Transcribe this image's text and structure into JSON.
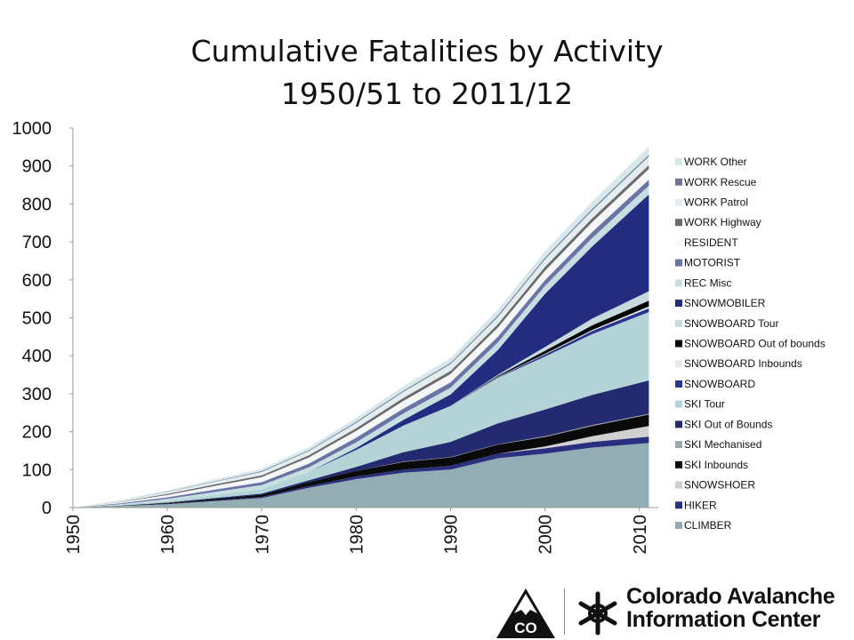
{
  "title": {
    "line1": "Cumulative Fatalities by Activity",
    "line2": "1950/51 to 2011/12"
  },
  "logo": {
    "name_line1": "Colorado Avalanche",
    "name_line2": "Information Center",
    "mark_text": "CO"
  },
  "chart_data": {
    "type": "area",
    "stacked": true,
    "title": "Cumulative Fatalities by Activity 1950/51 to 2011/12",
    "xlabel": "",
    "ylabel": "",
    "ylim": [
      0,
      1000
    ],
    "yticks": [
      0,
      100,
      200,
      300,
      400,
      500,
      600,
      700,
      800,
      900,
      1000
    ],
    "xlim": [
      1950,
      2012
    ],
    "xticks": [
      1950,
      1960,
      1970,
      1980,
      1990,
      2000,
      2010
    ],
    "grid": false,
    "legend_position": "right",
    "x": [
      1950,
      1955,
      1960,
      1965,
      1970,
      1975,
      1980,
      1985,
      1990,
      1995,
      2000,
      2005,
      2011
    ],
    "series": [
      {
        "name": "CLIMBER",
        "color": "#93adb5",
        "values": [
          0,
          4,
          9,
          17,
          25,
          52,
          75,
          92,
          100,
          130,
          142,
          158,
          170
        ]
      },
      {
        "name": "HIKER",
        "color": "#2a2f7f",
        "values": [
          0,
          0,
          1,
          2,
          3,
          5,
          7,
          8,
          10,
          12,
          14,
          15,
          17
        ]
      },
      {
        "name": "SNOWSHOER",
        "color": "#d0d0d0",
        "values": [
          0,
          0,
          0,
          0,
          0,
          0,
          0,
          0,
          0,
          0,
          5,
          15,
          28
        ]
      },
      {
        "name": "SKI Inbounds",
        "color": "#0a0a0a",
        "values": [
          0,
          1,
          2,
          4,
          6,
          10,
          15,
          20,
          22,
          24,
          25,
          27,
          30
        ]
      },
      {
        "name": "SKI Mechanised",
        "color": "#a0a6a8",
        "values": [
          0,
          0,
          0,
          0,
          0,
          0,
          0,
          1,
          1,
          1,
          2,
          2,
          2
        ]
      },
      {
        "name": "SKI Out of Bounds",
        "color": "#232a70",
        "values": [
          0,
          0,
          1,
          2,
          3,
          5,
          10,
          25,
          40,
          55,
          70,
          80,
          88
        ]
      },
      {
        "name": "SKI Tour",
        "color": "#b3d3d7",
        "values": [
          0,
          2,
          5,
          8,
          12,
          22,
          45,
          70,
          95,
          120,
          140,
          160,
          180
        ]
      },
      {
        "name": "SNOWBOARD",
        "color": "#2a3490",
        "values": [
          0,
          0,
          0,
          0,
          0,
          0,
          0,
          0,
          0,
          2,
          5,
          8,
          10
        ]
      },
      {
        "name": "SNOWBOARD Inbounds",
        "color": "#e7eaeb",
        "values": [
          0,
          0,
          0,
          0,
          0,
          0,
          0,
          0,
          0,
          1,
          2,
          3,
          5
        ]
      },
      {
        "name": "SNOWBOARD Out of bounds",
        "color": "#050505",
        "values": [
          0,
          0,
          0,
          0,
          0,
          0,
          0,
          0,
          0,
          2,
          8,
          12,
          15
        ]
      },
      {
        "name": "SNOWBOARD Tour",
        "color": "#c6d9dc",
        "values": [
          0,
          0,
          0,
          0,
          0,
          0,
          0,
          0,
          0,
          3,
          10,
          18,
          25
        ]
      },
      {
        "name": "SNOWMOBILER",
        "color": "#222c80",
        "values": [
          0,
          0,
          0,
          0,
          0,
          0,
          5,
          15,
          30,
          65,
          140,
          190,
          255
        ]
      },
      {
        "name": "REC Misc",
        "color": "#c8dfe2",
        "values": [
          0,
          2,
          5,
          8,
          10,
          12,
          15,
          17,
          18,
          20,
          21,
          22,
          23
        ]
      },
      {
        "name": "MOTORIST",
        "color": "#6a75a6",
        "values": [
          0,
          2,
          4,
          6,
          8,
          10,
          12,
          13,
          14,
          15,
          15,
          16,
          16
        ]
      },
      {
        "name": "RESIDENT",
        "color": "#f4f6f7",
        "values": [
          0,
          3,
          6,
          10,
          13,
          16,
          18,
          20,
          22,
          24,
          25,
          26,
          28
        ]
      },
      {
        "name": "WORK Highway",
        "color": "#6b6b6b",
        "values": [
          0,
          1,
          3,
          4,
          5,
          6,
          7,
          8,
          8,
          9,
          10,
          10,
          10
        ]
      },
      {
        "name": "WORK Patrol",
        "color": "#e3ecee",
        "values": [
          0,
          3,
          5,
          7,
          9,
          11,
          14,
          16,
          18,
          19,
          20,
          21,
          23
        ]
      },
      {
        "name": "WORK Rescue",
        "color": "#6f7597",
        "values": [
          0,
          0,
          1,
          1,
          2,
          2,
          3,
          3,
          3,
          4,
          4,
          4,
          4
        ]
      },
      {
        "name": "WORK Other",
        "color": "#d6e8ec",
        "values": [
          0,
          2,
          3,
          5,
          6,
          8,
          10,
          12,
          13,
          15,
          17,
          19,
          22
        ]
      }
    ]
  }
}
